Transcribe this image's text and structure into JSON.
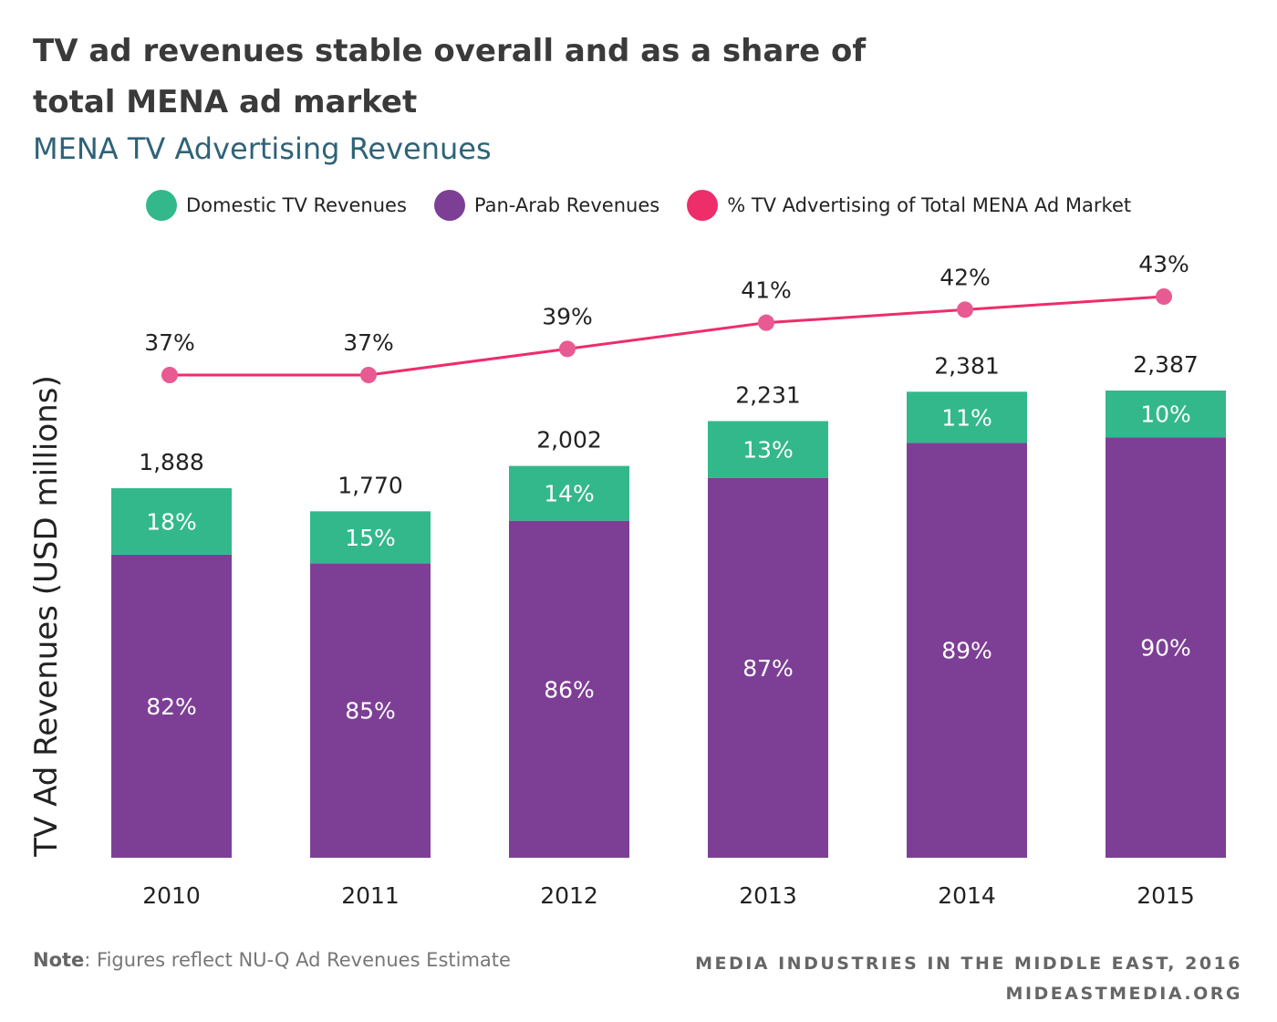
{
  "title": "TV ad revenues stable overall and as a share of total MENA ad market",
  "subtitle": "MENA TV Advertising Revenues",
  "legend": [
    {
      "label": "Domestic TV Revenues",
      "color": "#33b88c"
    },
    {
      "label": "Pan-Arab Revenues",
      "color": "#7d3f95"
    },
    {
      "label": "% TV Advertising of Total MENA Ad Market",
      "color": "#ee2d6b"
    }
  ],
  "footer": {
    "note_label": "Note",
    "note_text": ": Figures reflect NU-Q Ad Revenues Estimate",
    "credit_line1": "MEDIA INDUSTRIES IN THE MIDDLE EAST, 2016",
    "credit_line2": "MIDEASTMEDIA.ORG"
  },
  "chart_data": {
    "type": "bar",
    "stacked": true,
    "categories": [
      "2010",
      "2011",
      "2012",
      "2013",
      "2014",
      "2015"
    ],
    "ylabel": "TV Ad Revenues (USD millions)",
    "totals": [
      1888,
      1770,
      2002,
      2231,
      2381,
      2387
    ],
    "total_labels": [
      "1,888",
      "1,770",
      "2,002",
      "2,231",
      "2,381",
      "2,387"
    ],
    "series": [
      {
        "name": "Pan-Arab Revenues",
        "color": "#7d3f95",
        "share_pct": [
          82,
          85,
          86,
          87,
          89,
          90
        ],
        "labels": [
          "82%",
          "85%",
          "86%",
          "87%",
          "89%",
          "90%"
        ]
      },
      {
        "name": "Domestic TV Revenues",
        "color": "#33b88c",
        "share_pct": [
          18,
          15,
          14,
          13,
          11,
          10
        ],
        "labels": [
          "18%",
          "15%",
          "14%",
          "13%",
          "11%",
          "10%"
        ]
      }
    ],
    "line": {
      "name": "% TV Advertising of Total MENA Ad Market",
      "color": "#ee2d6b",
      "values": [
        37,
        37,
        39,
        41,
        42,
        43
      ],
      "labels": [
        "37%",
        "37%",
        "39%",
        "41%",
        "42%",
        "43%"
      ]
    },
    "grid": false,
    "legend_position": "top"
  }
}
